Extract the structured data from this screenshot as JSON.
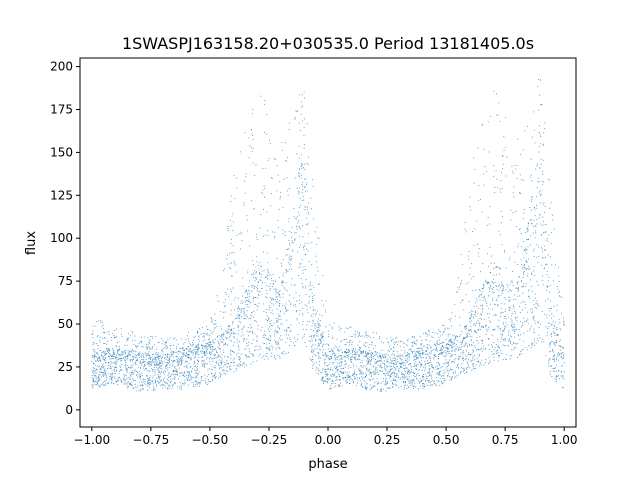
{
  "chart_data": {
    "type": "scatter",
    "title": "1SWASPJ163158.20+030535.0 Period 13181405.0s",
    "xlabel": "phase",
    "ylabel": "flux",
    "xlim": [
      -1.05,
      1.05
    ],
    "ylim": [
      -10,
      205
    ],
    "x_ticks": [
      -1.0,
      -0.75,
      -0.5,
      -0.25,
      0.0,
      0.25,
      0.5,
      0.75,
      1.0
    ],
    "x_tick_labels": [
      "−1.00",
      "−0.75",
      "−0.50",
      "−0.25",
      "0.00",
      "0.25",
      "0.50",
      "0.75",
      "1.00"
    ],
    "y_ticks": [
      0,
      25,
      50,
      75,
      100,
      125,
      150,
      175,
      200
    ],
    "y_tick_labels": [
      "0",
      "25",
      "50",
      "75",
      "100",
      "125",
      "150",
      "175",
      "200"
    ],
    "grid": false,
    "legend": "none",
    "point_color": "#1f77b4",
    "series": [
      {
        "phase_period": 1.0,
        "phase_range": [
          -1.0,
          1.0
        ],
        "profile": [
          {
            "phase": 0.0,
            "flux_low": 12,
            "flux_mid": 28,
            "flux_high": 55
          },
          {
            "phase": 0.1,
            "flux_low": 15,
            "flux_mid": 30,
            "flux_high": 48
          },
          {
            "phase": 0.2,
            "flux_low": 10,
            "flux_mid": 27,
            "flux_high": 45
          },
          {
            "phase": 0.3,
            "flux_low": 12,
            "flux_mid": 26,
            "flux_high": 42
          },
          {
            "phase": 0.4,
            "flux_low": 12,
            "flux_mid": 30,
            "flux_high": 45
          },
          {
            "phase": 0.5,
            "flux_low": 15,
            "flux_mid": 33,
            "flux_high": 50
          },
          {
            "phase": 0.56,
            "flux_low": 20,
            "flux_mid": 38,
            "flux_high": 85
          },
          {
            "phase": 0.6,
            "flux_low": 22,
            "flux_mid": 45,
            "flux_high": 140
          },
          {
            "phase": 0.7,
            "flux_low": 28,
            "flux_mid": 70,
            "flux_high": 190
          },
          {
            "phase": 0.8,
            "flux_low": 30,
            "flux_mid": 60,
            "flux_high": 160
          },
          {
            "phase": 0.85,
            "flux_low": 35,
            "flux_mid": 90,
            "flux_high": 170
          },
          {
            "phase": 0.9,
            "flux_low": 40,
            "flux_mid": 130,
            "flux_high": 198
          },
          {
            "phase": 0.94,
            "flux_low": 20,
            "flux_mid": 50,
            "flux_high": 130
          },
          {
            "phase": 1.0,
            "flux_low": 12,
            "flux_mid": 28,
            "flux_high": 55
          }
        ]
      }
    ]
  }
}
